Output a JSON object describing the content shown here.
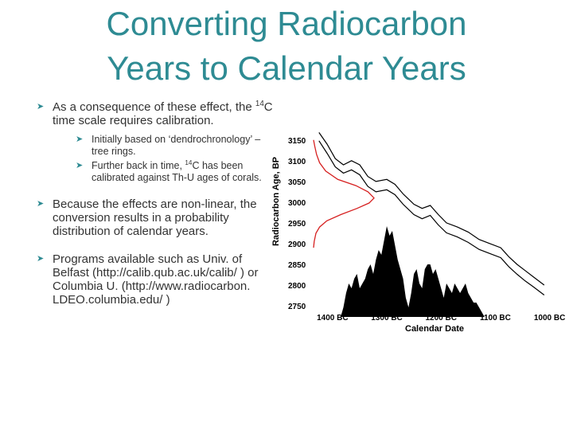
{
  "title": {
    "line1": "Converting Radiocarbon",
    "line2": "Years to Calendar Years"
  },
  "bullets": {
    "b1_pre": "As a consequence of these effect, the ",
    "b1_sup": "14",
    "b1_post": "C time scale requires calibration.",
    "sub1": "Initially based on ‘dendrochronology’ – tree rings.",
    "sub2_pre": "Further back in time, ",
    "sub2_sup": "14",
    "sub2_post": "C has been calibrated against Th-U ages of corals.",
    "b2": "Because the effects are non-linear, the conversion results in a probability distribution of calendar years.",
    "b3": "Programs available such as Univ. of Belfast (http://calib.qub.ac.uk/calib/ ) or Columbia U. (http://www.radiocarbon. LDEO.columbia.edu/ )"
  },
  "chart_data": {
    "type": "line",
    "xlabel": "Calendar Date",
    "ylabel": "Radiocarbon Age, BP",
    "xticks": [
      "1400 BC",
      "1300 BC",
      "1200 BC",
      "1100 BC",
      "1000 BC"
    ],
    "xtick_values": [
      1400,
      1300,
      1200,
      1100,
      1000
    ],
    "yticks": [
      "3150",
      "3100",
      "3050",
      "3000",
      "2950",
      "2900",
      "2850",
      "2800",
      "2750"
    ],
    "ytick_values": [
      3150,
      3100,
      3050,
      3000,
      2950,
      2900,
      2850,
      2800,
      2750
    ],
    "xlim": [
      1435,
      995
    ],
    "ylim": [
      2750,
      3165
    ],
    "calibration_upper": [
      [
        1425,
        3168
      ],
      [
        1410,
        3140
      ],
      [
        1395,
        3105
      ],
      [
        1380,
        3090
      ],
      [
        1365,
        3100
      ],
      [
        1350,
        3090
      ],
      [
        1335,
        3062
      ],
      [
        1320,
        3050
      ],
      [
        1300,
        3055
      ],
      [
        1285,
        3043
      ],
      [
        1270,
        3020
      ],
      [
        1250,
        2995
      ],
      [
        1235,
        2985
      ],
      [
        1220,
        2992
      ],
      [
        1205,
        2970
      ],
      [
        1190,
        2950
      ],
      [
        1170,
        2940
      ],
      [
        1150,
        2928
      ],
      [
        1130,
        2910
      ],
      [
        1110,
        2900
      ],
      [
        1090,
        2890
      ],
      [
        1075,
        2868
      ],
      [
        1060,
        2850
      ],
      [
        1045,
        2835
      ],
      [
        1030,
        2820
      ],
      [
        1010,
        2800
      ]
    ],
    "calibration_lower": [
      [
        1425,
        3148
      ],
      [
        1410,
        3118
      ],
      [
        1395,
        3085
      ],
      [
        1380,
        3070
      ],
      [
        1365,
        3078
      ],
      [
        1350,
        3066
      ],
      [
        1335,
        3038
      ],
      [
        1320,
        3025
      ],
      [
        1300,
        3030
      ],
      [
        1285,
        3018
      ],
      [
        1270,
        2995
      ],
      [
        1250,
        2970
      ],
      [
        1235,
        2960
      ],
      [
        1220,
        2968
      ],
      [
        1205,
        2945
      ],
      [
        1190,
        2926
      ],
      [
        1170,
        2916
      ],
      [
        1150,
        2903
      ],
      [
        1130,
        2886
      ],
      [
        1110,
        2876
      ],
      [
        1090,
        2866
      ],
      [
        1075,
        2844
      ],
      [
        1060,
        2826
      ],
      [
        1045,
        2810
      ],
      [
        1030,
        2796
      ],
      [
        1010,
        2776
      ]
    ],
    "radiocarbon_distribution": {
      "x": [
        0,
        0.02,
        0.05,
        0.1,
        0.2,
        0.4,
        0.7,
        0.9,
        1.0,
        0.92,
        0.72,
        0.45,
        0.22,
        0.1,
        0.04,
        0.01,
        0
      ],
      "y": [
        3150,
        3135,
        3115,
        3095,
        3075,
        3055,
        3040,
        3025,
        3010,
        2998,
        2985,
        2970,
        2955,
        2940,
        2925,
        2905,
        2890
      ]
    },
    "calendar_distribution": {
      "x": [
        1385,
        1380,
        1375,
        1370,
        1365,
        1360,
        1355,
        1350,
        1345,
        1340,
        1335,
        1330,
        1325,
        1320,
        1315,
        1310,
        1305,
        1300,
        1295,
        1290,
        1285,
        1280,
        1275,
        1270,
        1265,
        1260,
        1255,
        1250,
        1245,
        1240,
        1235,
        1230,
        1225,
        1220,
        1215,
        1210,
        1205,
        1200,
        1195,
        1190,
        1185,
        1180,
        1175,
        1170,
        1165,
        1160,
        1155,
        1150,
        1145,
        1140,
        1135,
        1130,
        1125,
        1120
      ],
      "y": [
        0,
        0.1,
        0.25,
        0.35,
        0.3,
        0.4,
        0.45,
        0.3,
        0.35,
        0.4,
        0.5,
        0.55,
        0.45,
        0.6,
        0.7,
        0.65,
        0.8,
        0.95,
        0.85,
        0.9,
        0.75,
        0.6,
        0.5,
        0.4,
        0.2,
        0.1,
        0.25,
        0.45,
        0.5,
        0.35,
        0.3,
        0.5,
        0.55,
        0.55,
        0.45,
        0.5,
        0.4,
        0.3,
        0.2,
        0.35,
        0.3,
        0.25,
        0.35,
        0.3,
        0.25,
        0.3,
        0.35,
        0.25,
        0.2,
        0.15,
        0.15,
        0.1,
        0.05,
        0
      ]
    },
    "colors": {
      "calibration": "#000000",
      "radiocarbon": "#d62020",
      "calendar": "#000000"
    }
  },
  "colors": {
    "title": "#2e8b93",
    "bullet_mark": "#2e8b93",
    "text": "#333333"
  },
  "icons": {
    "bullet": "arrow-bullet-icon"
  }
}
